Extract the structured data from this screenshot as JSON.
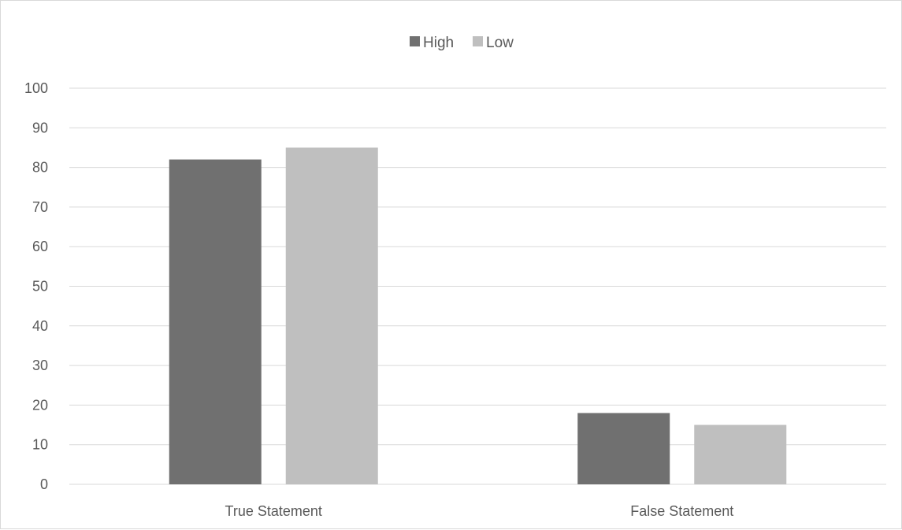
{
  "chart_data": {
    "type": "bar",
    "categories": [
      "True Statement",
      "False Statement"
    ],
    "series": [
      {
        "name": "High",
        "values": [
          82,
          18
        ],
        "color": "#707070"
      },
      {
        "name": "Low",
        "values": [
          85,
          15
        ],
        "color": "#bfbfbf"
      }
    ],
    "yticks": [
      "0",
      "10",
      "20",
      "30",
      "40",
      "50",
      "60",
      "70",
      "80",
      "90",
      "100"
    ],
    "ylim": [
      0,
      100
    ],
    "grid": true,
    "legend_position": "top-center",
    "gridline_color": "#d9d9d9"
  }
}
